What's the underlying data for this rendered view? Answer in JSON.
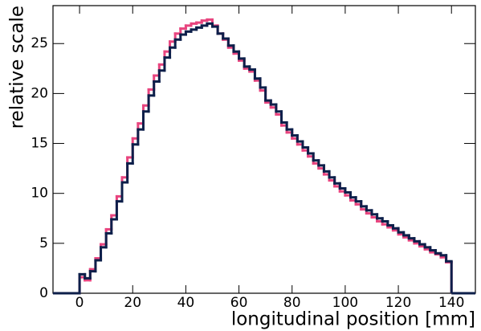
{
  "chart_data": {
    "type": "histogram",
    "x_label": "longitudinal position [mm]",
    "y_label": "relative scale",
    "xlim": [
      -10,
      149
    ],
    "ylim": [
      0,
      28.8
    ],
    "xticks": [
      0,
      20,
      40,
      60,
      80,
      100,
      120,
      140
    ],
    "yticks": [
      0,
      5,
      10,
      15,
      20,
      25
    ],
    "bins": [
      0,
      2,
      4,
      6,
      8,
      10,
      12,
      14,
      16,
      18,
      20,
      22,
      24,
      26,
      28,
      30,
      32,
      34,
      36,
      38,
      40,
      42,
      44,
      46,
      48,
      50,
      52,
      54,
      56,
      58,
      60,
      62,
      64,
      66,
      68,
      70,
      72,
      74,
      76,
      78,
      80,
      82,
      84,
      86,
      88,
      90,
      92,
      94,
      96,
      98,
      100,
      102,
      104,
      106,
      108,
      110,
      112,
      114,
      116,
      118,
      120,
      122,
      124,
      126,
      128,
      130,
      132,
      134,
      136,
      138,
      140
    ],
    "series": [
      {
        "color": "#e8457f",
        "values": [
          1.6,
          1.3,
          2.4,
          3.5,
          4.9,
          6.4,
          7.8,
          9.7,
          11.6,
          13.6,
          15.5,
          17.0,
          18.8,
          20.4,
          21.8,
          22.9,
          24.2,
          25.2,
          26.0,
          26.5,
          26.8,
          27.0,
          27.1,
          27.3,
          27.4,
          26.8,
          26.0,
          25.4,
          24.6,
          24.0,
          23.3,
          22.5,
          22.2,
          21.3,
          20.3,
          19.1,
          18.6,
          17.9,
          16.8,
          16.1,
          15.5,
          14.9,
          14.3,
          13.7,
          13.0,
          12.5,
          11.9,
          11.3,
          10.7,
          10.2,
          9.8,
          9.3,
          8.9,
          8.4,
          8.0,
          7.6,
          7.2,
          6.9,
          6.6,
          6.3,
          5.9,
          5.6,
          5.3,
          5.0,
          4.7,
          4.4,
          4.1,
          3.9,
          3.6,
          3.1
        ]
      },
      {
        "color": "#0d1f4a",
        "values": [
          1.9,
          1.5,
          2.2,
          3.3,
          4.6,
          6.0,
          7.4,
          9.2,
          11.1,
          13.0,
          14.9,
          16.4,
          18.2,
          19.8,
          21.2,
          22.3,
          23.6,
          24.6,
          25.4,
          25.9,
          26.2,
          26.4,
          26.6,
          26.8,
          27.0,
          26.7,
          26.0,
          25.5,
          24.8,
          24.2,
          23.5,
          22.7,
          22.4,
          21.5,
          20.6,
          19.3,
          18.9,
          18.2,
          17.1,
          16.4,
          15.8,
          15.2,
          14.6,
          14.0,
          13.3,
          12.8,
          12.2,
          11.6,
          11.0,
          10.5,
          10.1,
          9.6,
          9.2,
          8.7,
          8.3,
          7.9,
          7.5,
          7.2,
          6.8,
          6.5,
          6.1,
          5.8,
          5.5,
          5.2,
          4.9,
          4.6,
          4.3,
          4.0,
          3.8,
          3.2
        ]
      }
    ]
  }
}
